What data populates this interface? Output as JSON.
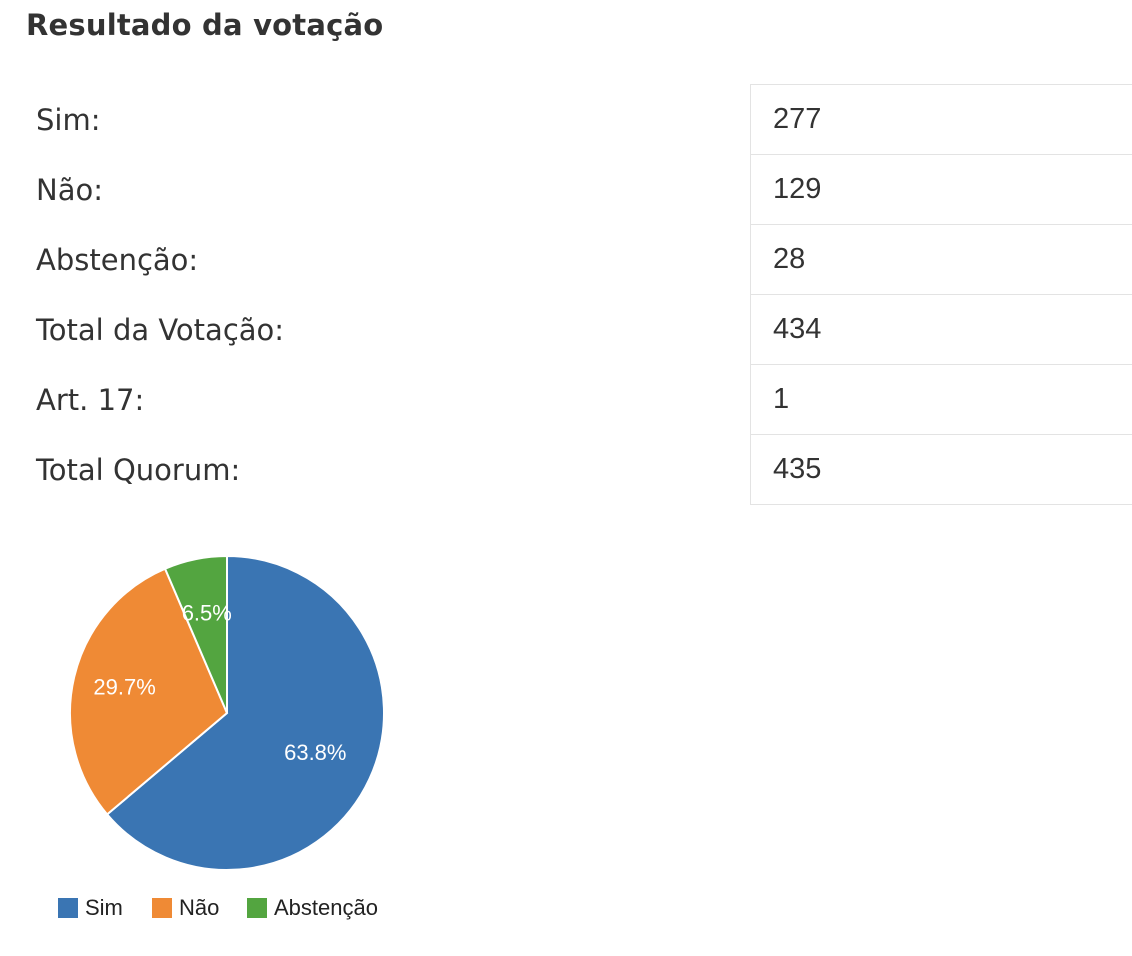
{
  "title": "Resultado da votação",
  "rows": [
    {
      "label": "Sim:",
      "value": "277"
    },
    {
      "label": "Não:",
      "value": "129"
    },
    {
      "label": "Abstenção:",
      "value": "28"
    },
    {
      "label": "Total da Votação:",
      "value": "434"
    },
    {
      "label": "Art. 17:",
      "value": "1"
    },
    {
      "label": "Total Quorum:",
      "value": "435"
    }
  ],
  "chart_data": {
    "type": "pie",
    "categories": [
      "Sim",
      "Não",
      "Abstenção"
    ],
    "values": [
      277,
      129,
      28
    ],
    "labels": [
      "63.8%",
      "29.7%",
      "6.5%"
    ],
    "colors": [
      "#3a75b3",
      "#ef8a35",
      "#53a540"
    ],
    "legend": "bottom"
  }
}
